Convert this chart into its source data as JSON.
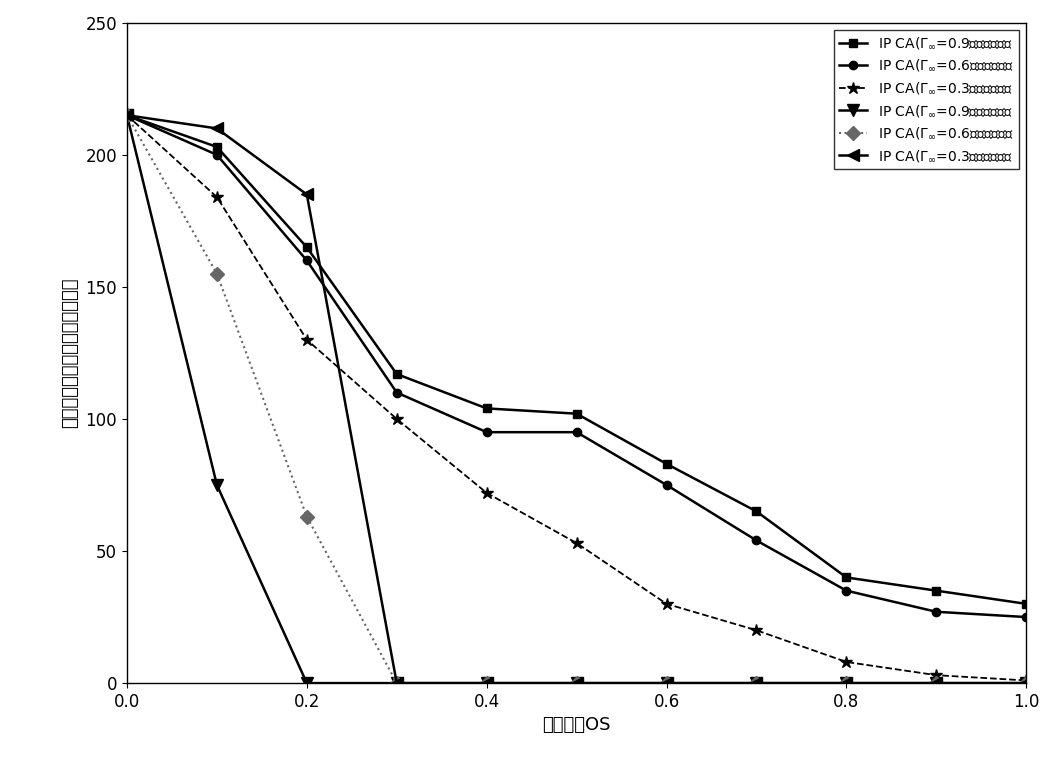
{
  "x": [
    0.0,
    0.1,
    0.2,
    0.3,
    0.4,
    0.5,
    0.6,
    0.7,
    0.8,
    0.9,
    1.0
  ],
  "series": [
    {
      "label": "IP CA(Γ_∞=0.9，酵母网络）",
      "y": [
        215,
        203,
        165,
        117,
        104,
        102,
        83,
        65,
        40,
        35,
        30
      ],
      "color": "#000000",
      "linestyle": "-",
      "marker": "s",
      "linewidth": 1.8,
      "markersize": 6
    },
    {
      "label": "IP CA(Γ_∞=0.6，酵母网络）",
      "y": [
        215,
        200,
        160,
        110,
        95,
        95,
        75,
        54,
        35,
        27,
        25
      ],
      "color": "#000000",
      "linestyle": "-",
      "marker": "o",
      "linewidth": 1.8,
      "markersize": 6
    },
    {
      "label": "IP CA(Γ_∞=0.3，酵母网络）",
      "y": [
        215,
        184,
        130,
        100,
        72,
        53,
        30,
        20,
        8,
        3,
        1
      ],
      "color": "#000000",
      "linestyle": "--",
      "marker": "*",
      "linewidth": 1.3,
      "markersize": 9
    },
    {
      "label": "IP CA(Γ_∞=0.9，随机网络）",
      "y": [
        215,
        75,
        0,
        0,
        0,
        0,
        0,
        0,
        0,
        0,
        0
      ],
      "color": "#000000",
      "linestyle": "-",
      "marker": "v",
      "linewidth": 1.8,
      "markersize": 8
    },
    {
      "label": "IP CA(Γ_∞=0.6，随机网络）",
      "y": [
        215,
        155,
        63,
        0,
        0,
        0,
        0,
        0,
        0,
        0,
        0
      ],
      "color": "#666666",
      "linestyle": ":",
      "marker": "D",
      "linewidth": 1.5,
      "markersize": 7
    },
    {
      "label": "IP CA(Γ_∞=0.3，随机网络）",
      "y": [
        215,
        210,
        185,
        0,
        0,
        0,
        0,
        0,
        0,
        0,
        0
      ],
      "color": "#000000",
      "linestyle": "-",
      "marker": "<",
      "linewidth": 1.8,
      "markersize": 8
    }
  ],
  "xlabel": "匹配阈値OS",
  "ylabel_chars": [
    "已",
    "知",
    "蛋",
    "白",
    "质",
    "复",
    "合",
    "物",
    "被",
    "匹",
    "配",
    "的",
    "数",
    "量"
  ],
  "xlim": [
    0.0,
    1.0
  ],
  "ylim": [
    0,
    250
  ],
  "yticks": [
    0,
    50,
    100,
    150,
    200,
    250
  ],
  "xticks": [
    0.0,
    0.2,
    0.4,
    0.6,
    0.8,
    1.0
  ],
  "xtick_labels": [
    "0.0",
    "0.2",
    "0.4",
    "0.6",
    "0.8",
    "1.0"
  ],
  "axis_fontsize": 13,
  "legend_fontsize": 10,
  "tick_fontsize": 12
}
